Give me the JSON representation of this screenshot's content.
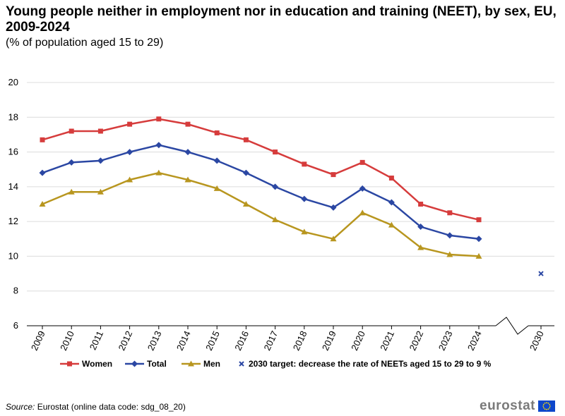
{
  "header": {
    "title": "Young people neither in employment nor in education and training (NEET), by sex, EU, 2009-2024",
    "subtitle": "(% of population aged 15 to 29)"
  },
  "chart_data": {
    "type": "line",
    "title": "Young people neither in employment nor in education and training (NEET), by sex, EU, 2009-2024",
    "subtitle": "(% of population aged 15 to 29)",
    "categories": [
      "2009",
      "2010",
      "2011",
      "2012",
      "2013",
      "2014",
      "2015",
      "2016",
      "2017",
      "2018",
      "2019",
      "2020",
      "2021",
      "2022",
      "2023",
      "2024",
      "2030"
    ],
    "ylim": [
      6,
      20
    ],
    "yticks": [
      6,
      8,
      10,
      12,
      14,
      16,
      18,
      20
    ],
    "grid": true,
    "legend_position": "bottom",
    "series": [
      {
        "name": "Women",
        "color": "#d63c3c",
        "marker": "square",
        "values": [
          16.7,
          17.2,
          17.2,
          17.6,
          17.9,
          17.6,
          17.1,
          16.7,
          16.0,
          15.3,
          14.7,
          15.4,
          14.5,
          13.0,
          12.5,
          12.1,
          null
        ]
      },
      {
        "name": "Total",
        "color": "#2b47a3",
        "marker": "diamond",
        "values": [
          14.8,
          15.4,
          15.5,
          16.0,
          16.4,
          16.0,
          15.5,
          14.8,
          14.0,
          13.3,
          12.8,
          13.9,
          13.1,
          11.7,
          11.2,
          11.0,
          null
        ]
      },
      {
        "name": "Men",
        "color": "#b8961f",
        "marker": "triangle",
        "values": [
          13.0,
          13.7,
          13.7,
          14.4,
          14.8,
          14.4,
          13.9,
          13.0,
          12.1,
          11.4,
          11.0,
          12.5,
          11.8,
          10.5,
          10.1,
          10.0,
          null
        ]
      }
    ],
    "target": {
      "name": "2030 target: decrease the rate of NEETs aged 15 to 29 to 9 %",
      "x": "2030",
      "value": 9,
      "color": "#2b47a3",
      "marker": "x"
    }
  },
  "footer": {
    "source_label": "Source:",
    "source_text": " Eurostat (online data code: sdg_08_20)",
    "logo": "eurostat"
  }
}
